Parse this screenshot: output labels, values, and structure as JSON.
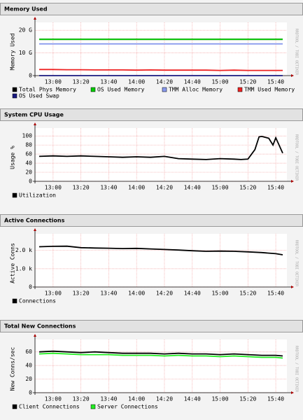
{
  "chart_data": [
    {
      "type": "line",
      "title": "Memory Used",
      "y_label": "Memory Used",
      "watermark": "RRDTOOL / TOBI OETIKER",
      "x": [
        "12:50",
        "13:00",
        "13:10",
        "13:20",
        "13:30",
        "13:40",
        "13:50",
        "14:00",
        "14:10",
        "14:20",
        "14:30",
        "14:40",
        "14:50",
        "15:00",
        "15:10",
        "15:20",
        "15:30",
        "15:40",
        "15:45"
      ],
      "xlim": [
        "12:47",
        "15:48"
      ],
      "xticks": [
        "13:00",
        "13:20",
        "13:40",
        "14:00",
        "14:20",
        "14:40",
        "15:00",
        "15:20",
        "15:40"
      ],
      "ylim": [
        0,
        21
      ],
      "yticks": [
        0,
        {
          "value": 10,
          "label": "10 G"
        },
        {
          "value": 20,
          "label": "20 G"
        }
      ],
      "grid": true,
      "series": [
        {
          "name": "Total Phys Memory",
          "color": "#000000",
          "values": [
            16,
            16,
            16,
            16,
            16,
            16,
            16,
            16,
            16,
            16,
            16,
            16,
            16,
            16,
            16,
            16,
            16,
            16,
            16
          ]
        },
        {
          "name": "OS Used Memory",
          "color": "#00cc00",
          "values": [
            16,
            16,
            16,
            16,
            16,
            16,
            16,
            16,
            16,
            16,
            16,
            16,
            16,
            16,
            16,
            16,
            16,
            16,
            16
          ]
        },
        {
          "name": "TMM Alloc Memory",
          "color": "#8899ee",
          "values": [
            14,
            14,
            14,
            14,
            14,
            14,
            14,
            14,
            14,
            14,
            14,
            14,
            14,
            14,
            14,
            14,
            14,
            14,
            14
          ]
        },
        {
          "name": "TMM Used Memory",
          "color": "#ee2222",
          "values": [
            2.7,
            2.7,
            2.6,
            2.6,
            2.5,
            2.5,
            2.5,
            2.4,
            2.5,
            2.4,
            2.4,
            2.4,
            2.4,
            2.3,
            2.4,
            2.3,
            2.3,
            2.3,
            2.3
          ]
        },
        {
          "name": "OS Used Swap",
          "color": "#1a1a80",
          "values": [
            0,
            0,
            0,
            0,
            0,
            0,
            0,
            0,
            0,
            0,
            0,
            0,
            0,
            0,
            0,
            0,
            0,
            0,
            0
          ]
        }
      ]
    },
    {
      "type": "line",
      "title": "System CPU Usage",
      "y_label": "Usage %",
      "watermark": "RRDTOOL / TOBI OETIKER",
      "x": [
        "12:50",
        "13:00",
        "13:10",
        "13:20",
        "13:30",
        "13:40",
        "13:50",
        "14:00",
        "14:10",
        "14:20",
        "14:30",
        "14:40",
        "14:50",
        "15:00",
        "15:10",
        "15:15",
        "15:20",
        "15:25",
        "15:28",
        "15:30",
        "15:35",
        "15:38",
        "15:40",
        "15:45"
      ],
      "xlim": [
        "12:47",
        "15:48"
      ],
      "xticks": [
        "13:00",
        "13:20",
        "13:40",
        "14:00",
        "14:20",
        "14:40",
        "15:00",
        "15:20",
        "15:40"
      ],
      "ylim": [
        0,
        105
      ],
      "yticks": [
        0,
        20,
        40,
        60,
        80,
        100
      ],
      "grid": true,
      "series": [
        {
          "name": "Utilization",
          "color": "#000000",
          "values": [
            55,
            56,
            55,
            56,
            55,
            54,
            53,
            54,
            53,
            55,
            50,
            49,
            48,
            50,
            49,
            48,
            49,
            70,
            98,
            99,
            95,
            80,
            96,
            62
          ]
        }
      ]
    },
    {
      "type": "line",
      "title": "Active Connections",
      "y_label": "Active Conns",
      "watermark": "RRDTOOL / TOBI OETIKER",
      "x": [
        "12:50",
        "13:00",
        "13:10",
        "13:20",
        "13:30",
        "13:40",
        "13:50",
        "14:00",
        "14:10",
        "14:20",
        "14:30",
        "14:40",
        "14:50",
        "15:00",
        "15:10",
        "15:20",
        "15:30",
        "15:40",
        "15:45"
      ],
      "xlim": [
        "12:47",
        "15:48"
      ],
      "xticks": [
        "13:00",
        "13:20",
        "13:40",
        "14:00",
        "14:20",
        "14:40",
        "15:00",
        "15:20",
        "15:40"
      ],
      "ylim": [
        0,
        2600
      ],
      "yticks": [
        0,
        {
          "value": 1000,
          "label": "1.0 k"
        },
        {
          "value": 2000,
          "label": "2.0 k"
        }
      ],
      "grid": true,
      "series": [
        {
          "name": "Connections",
          "color": "#000000",
          "values": [
            2200,
            2220,
            2230,
            2150,
            2130,
            2120,
            2100,
            2110,
            2080,
            2050,
            2020,
            1980,
            1950,
            1960,
            1950,
            1920,
            1880,
            1820,
            1760
          ]
        }
      ]
    },
    {
      "type": "line",
      "title": "Total New Connections",
      "y_label": "New Conns/sec",
      "watermark": "RRDTOOL / TOBI OETIKER",
      "x": [
        "12:50",
        "13:00",
        "13:10",
        "13:20",
        "13:30",
        "13:40",
        "13:50",
        "14:00",
        "14:10",
        "14:20",
        "14:30",
        "14:40",
        "14:50",
        "15:00",
        "15:10",
        "15:20",
        "15:30",
        "15:40",
        "15:45"
      ],
      "xlim": [
        "12:47",
        "15:48"
      ],
      "xticks": [
        "13:00",
        "13:20",
        "13:40",
        "14:00",
        "14:20",
        "14:40",
        "15:00",
        "15:20",
        "15:40"
      ],
      "ylim": [
        0,
        70
      ],
      "yticks": [
        0,
        20,
        40,
        60
      ],
      "grid": true,
      "series": [
        {
          "name": "Client Connections",
          "color": "#000000",
          "values": [
            60,
            61,
            60,
            59,
            60,
            59,
            58,
            58,
            58,
            57,
            58,
            57,
            57,
            56,
            57,
            56,
            55,
            55,
            54
          ]
        },
        {
          "name": "Server Connections",
          "color": "#22ee22",
          "values": [
            57,
            58,
            57,
            56,
            56,
            56,
            55,
            55,
            55,
            54,
            55,
            54,
            54,
            53,
            54,
            53,
            52,
            52,
            51
          ]
        }
      ]
    }
  ]
}
